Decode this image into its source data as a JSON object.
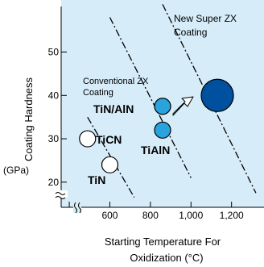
{
  "chart_data": {
    "type": "scatter",
    "xlabel_line1": "Starting Temperature For",
    "xlabel_line2": "Oxidization (°C)",
    "ylabel": "Coating Hardness",
    "yunit": "(GPa)",
    "xlim": [
      360,
      1360
    ],
    "ylim": [
      14.2,
      62
    ],
    "xticks": [
      400,
      600,
      800,
      1000,
      1200
    ],
    "xtick_labels": [
      "",
      "600",
      "800",
      "1,000",
      "1,200"
    ],
    "yticks": [
      20,
      30,
      40,
      50
    ],
    "ytick_labels": [
      "20",
      "30",
      "40",
      "50"
    ],
    "axis_break": true,
    "points": [
      {
        "label": "TiCN",
        "x": 490,
        "y": 30,
        "style": "open",
        "size": "small"
      },
      {
        "label": "TiN",
        "x": 600,
        "y": 24,
        "style": "open",
        "size": "small"
      },
      {
        "label": "TiN/AlN",
        "x": 860,
        "y": 37.5,
        "style": "light-blue",
        "size": "small"
      },
      {
        "label": "TiAlN",
        "x": 860,
        "y": 32,
        "style": "light-blue",
        "size": "small"
      },
      {
        "label": "",
        "x": 1130,
        "y": 40,
        "style": "dark-blue",
        "size": "large"
      }
    ],
    "trend_lines": [
      {
        "from": [
          490,
          35
        ],
        "to": [
          720,
          16.5
        ]
      },
      {
        "from": [
          600,
          58
        ],
        "to": [
          1000,
          21
        ]
      },
      {
        "from": [
          860,
          61
        ],
        "to": [
          1320,
          17.5
        ]
      }
    ],
    "annotations": [
      {
        "text_lines": [
          "Conventional ZX",
          "Coating"
        ]
      },
      {
        "text_lines": [
          "New Super ZX",
          "Coating"
        ]
      }
    ],
    "colors": {
      "background": "#d6ecf8",
      "light_point": "#29a3dd",
      "dark_point": "#0050a0",
      "open_point": "#ffffff",
      "axis": "#000000"
    }
  }
}
